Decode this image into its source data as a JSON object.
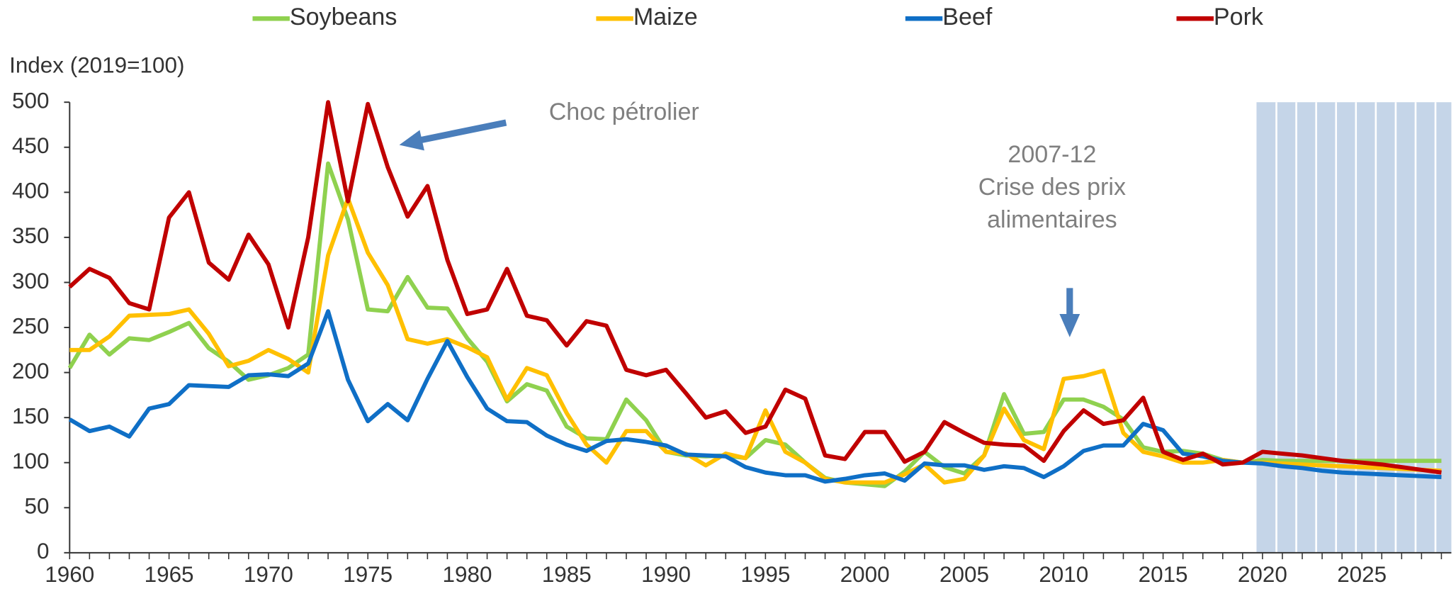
{
  "chart_data": {
    "type": "line",
    "y_label": "Index (2019=100)",
    "annotations": [
      {
        "lines": [
          "Choc pétrolier"
        ]
      },
      {
        "lines": [
          "2007-12",
          "Crise des prix",
          "alimentaires"
        ]
      }
    ],
    "projection_start": 2019.7,
    "x": [
      1960,
      1961,
      1962,
      1963,
      1964,
      1965,
      1966,
      1967,
      1968,
      1969,
      1970,
      1971,
      1972,
      1973,
      1974,
      1975,
      1976,
      1977,
      1978,
      1979,
      1980,
      1981,
      1982,
      1983,
      1984,
      1985,
      1986,
      1987,
      1988,
      1989,
      1990,
      1991,
      1992,
      1993,
      1994,
      1995,
      1996,
      1997,
      1998,
      1999,
      2000,
      2001,
      2002,
      2003,
      2004,
      2005,
      2006,
      2007,
      2008,
      2009,
      2010,
      2011,
      2012,
      2013,
      2014,
      2015,
      2016,
      2017,
      2018,
      2019,
      2020,
      2021,
      2022,
      2023,
      2024,
      2025,
      2026,
      2027,
      2028,
      2029
    ],
    "series": [
      {
        "name": "Soybeans",
        "color": "#8fd14f",
        "values": [
          205,
          242,
          220,
          238,
          236,
          245,
          255,
          227,
          212,
          192,
          197,
          205,
          220,
          432,
          370,
          270,
          268,
          306,
          272,
          271,
          238,
          212,
          168,
          187,
          180,
          140,
          127,
          126,
          170,
          147,
          112,
          108,
          107,
          108,
          105,
          125,
          120,
          100,
          83,
          78,
          76,
          74,
          90,
          112,
          95,
          88,
          108,
          176,
          132,
          134,
          170,
          170,
          162,
          148,
          117,
          112,
          113,
          110,
          103,
          100,
          103,
          102,
          102,
          102,
          102,
          102,
          102,
          102,
          102,
          102
        ]
      },
      {
        "name": "Maize",
        "color": "#ffc000",
        "values": [
          225,
          225,
          240,
          263,
          264,
          265,
          270,
          243,
          207,
          213,
          225,
          215,
          200,
          330,
          393,
          333,
          297,
          237,
          232,
          237,
          228,
          217,
          170,
          205,
          197,
          155,
          120,
          100,
          135,
          135,
          112,
          110,
          97,
          110,
          105,
          158,
          112,
          100,
          82,
          78,
          78,
          78,
          87,
          98,
          78,
          82,
          108,
          160,
          125,
          115,
          193,
          196,
          202,
          133,
          112,
          107,
          100,
          100,
          103,
          100,
          100,
          99,
          98,
          97,
          96,
          95,
          94,
          93,
          92,
          91
        ]
      },
      {
        "name": "Beef",
        "color": "#0f6fc6",
        "values": [
          148,
          135,
          140,
          129,
          160,
          165,
          186,
          185,
          184,
          197,
          198,
          196,
          210,
          268,
          192,
          146,
          165,
          147,
          193,
          235,
          195,
          160,
          146,
          145,
          130,
          120,
          113,
          124,
          126,
          123,
          119,
          109,
          108,
          107,
          95,
          89,
          86,
          86,
          79,
          82,
          86,
          88,
          80,
          99,
          97,
          97,
          92,
          96,
          94,
          84,
          96,
          113,
          119,
          119,
          143,
          136,
          110,
          107,
          102,
          100,
          99,
          96,
          94,
          91,
          89,
          88,
          87,
          86,
          85,
          84
        ]
      },
      {
        "name": "Pork",
        "color": "#c00000",
        "values": [
          295,
          315,
          305,
          277,
          270,
          372,
          400,
          322,
          303,
          353,
          320,
          250,
          350,
          500,
          390,
          498,
          428,
          373,
          407,
          325,
          265,
          270,
          315,
          263,
          258,
          230,
          257,
          252,
          203,
          197,
          203,
          177,
          150,
          157,
          133,
          140,
          181,
          171,
          108,
          104,
          134,
          134,
          101,
          112,
          145,
          133,
          122,
          120,
          119,
          102,
          135,
          158,
          143,
          147,
          172,
          112,
          103,
          110,
          98,
          100,
          112,
          110,
          108,
          105,
          102,
          100,
          98,
          95,
          92,
          89
        ]
      }
    ],
    "xlim": [
      1960,
      2029.5
    ],
    "xticks": [
      1960,
      1965,
      1970,
      1975,
      1980,
      1985,
      1990,
      1995,
      2000,
      2005,
      2010,
      2015,
      2020,
      2025
    ],
    "ylim": [
      0,
      500
    ],
    "yticks": [
      0,
      50,
      100,
      150,
      200,
      250,
      300,
      350,
      400,
      450,
      500
    ],
    "legend": "top"
  }
}
